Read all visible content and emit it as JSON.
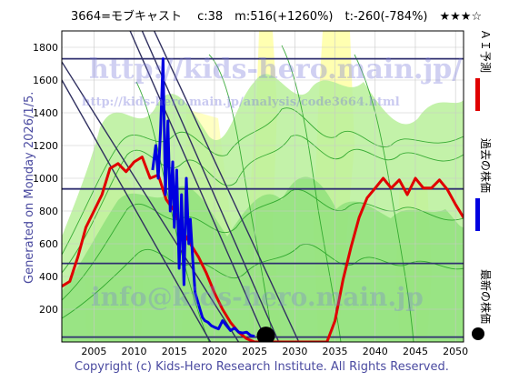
{
  "header": "3664=モブキャスト　 c:38　m:516(+1260%)　t:-260(-784%)　★★★☆",
  "watermark_url": "http://kids-hero.main.jp/",
  "watermark_sub": "http://kids-hero.main.jp/analysis/code3664.html",
  "watermark_email": "info@kids-hero.main.jp",
  "side_label": "Generated on Monday 2026/1/5.",
  "copyright": "Copyright (c) Kids-Hero Research Institute. All Rights Reserved.",
  "legend": [
    {
      "label": "ＡＩ予測",
      "color": "#e00000",
      "marker": "line"
    },
    {
      "label": "過去の株価",
      "color": "#0000e0",
      "marker": "line"
    },
    {
      "label": "最新の株価",
      "color": "#000000",
      "marker": "dot"
    }
  ],
  "chart_data": {
    "type": "line",
    "xlim": [
      2001,
      2051
    ],
    "ylim": [
      0,
      1900
    ],
    "x_ticks": [
      2005,
      2010,
      2015,
      2020,
      2025,
      2030,
      2035,
      2040,
      2045,
      2050
    ],
    "y_ticks": [
      200,
      400,
      600,
      800,
      1000,
      1200,
      1400,
      1600,
      1800
    ],
    "horizontal_lines": [
      1730,
      935,
      480,
      30
    ],
    "trend_lines": [
      [
        [
          2009.5,
          1900
        ],
        [
          2026.5,
          0
        ]
      ],
      [
        [
          2011.0,
          1900
        ],
        [
          2028.0,
          0
        ]
      ],
      [
        [
          2012.5,
          1900
        ],
        [
          2030.5,
          0
        ]
      ],
      [
        [
          2000.5,
          1750
        ],
        [
          2023.0,
          0
        ]
      ],
      [
        [
          2001.0,
          1600
        ],
        [
          2019.5,
          0
        ]
      ]
    ],
    "series": [
      {
        "name": "ＡＩ予測",
        "color": "#e00000",
        "points": [
          [
            2001,
            340
          ],
          [
            2002,
            370
          ],
          [
            2003,
            520
          ],
          [
            2004,
            700
          ],
          [
            2005,
            800
          ],
          [
            2006,
            900
          ],
          [
            2007,
            1060
          ],
          [
            2008,
            1090
          ],
          [
            2009,
            1040
          ],
          [
            2010,
            1100
          ],
          [
            2011,
            1130
          ],
          [
            2012,
            1000
          ],
          [
            2013,
            1020
          ],
          [
            2014,
            870
          ],
          [
            2015,
            800
          ],
          [
            2016,
            680
          ],
          [
            2017,
            600
          ],
          [
            2018,
            520
          ],
          [
            2019,
            420
          ],
          [
            2020,
            300
          ],
          [
            2021,
            200
          ],
          [
            2022,
            120
          ],
          [
            2023,
            60
          ],
          [
            2024,
            20
          ],
          [
            2025,
            0
          ],
          [
            2034,
            0
          ],
          [
            2035,
            130
          ],
          [
            2036,
            380
          ],
          [
            2037,
            580
          ],
          [
            2038,
            760
          ],
          [
            2039,
            880
          ],
          [
            2040,
            940
          ],
          [
            2041,
            1000
          ],
          [
            2042,
            940
          ],
          [
            2043,
            990
          ],
          [
            2044,
            900
          ],
          [
            2045,
            1000
          ],
          [
            2046,
            940
          ],
          [
            2047,
            940
          ],
          [
            2048,
            990
          ],
          [
            2049,
            930
          ],
          [
            2050,
            840
          ],
          [
            2051,
            760
          ]
        ]
      },
      {
        "name": "過去の株価",
        "color": "#0000e0",
        "points": [
          [
            2012.3,
            1050
          ],
          [
            2012.7,
            1200
          ],
          [
            2013.0,
            1000
          ],
          [
            2013.3,
            1300
          ],
          [
            2013.6,
            1730
          ],
          [
            2013.9,
            900
          ],
          [
            2014.2,
            1350
          ],
          [
            2014.5,
            800
          ],
          [
            2014.8,
            1100
          ],
          [
            2015.0,
            700
          ],
          [
            2015.3,
            1050
          ],
          [
            2015.6,
            450
          ],
          [
            2015.9,
            900
          ],
          [
            2016.2,
            350
          ],
          [
            2016.5,
            1000
          ],
          [
            2016.8,
            600
          ],
          [
            2017.0,
            750
          ],
          [
            2017.3,
            500
          ],
          [
            2017.6,
            300
          ],
          [
            2017.9,
            250
          ],
          [
            2018.2,
            200
          ],
          [
            2018.5,
            150
          ],
          [
            2018.8,
            130
          ],
          [
            2019.2,
            120
          ],
          [
            2019.6,
            100
          ],
          [
            2020.0,
            90
          ],
          [
            2020.5,
            80
          ],
          [
            2021.0,
            130
          ],
          [
            2021.5,
            100
          ],
          [
            2022.0,
            70
          ],
          [
            2022.5,
            85
          ],
          [
            2023.0,
            60
          ],
          [
            2023.5,
            55
          ],
          [
            2024.0,
            60
          ],
          [
            2024.5,
            40
          ],
          [
            2025.0,
            35
          ]
        ]
      }
    ],
    "latest_price": {
      "x": 2026.4,
      "y": 38
    }
  }
}
